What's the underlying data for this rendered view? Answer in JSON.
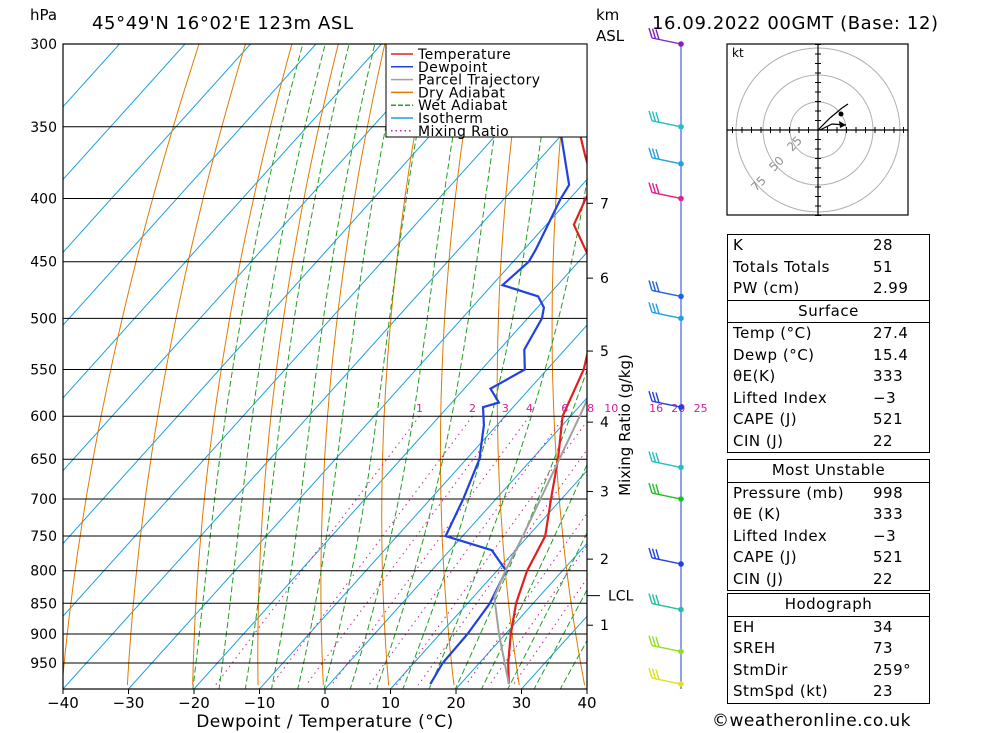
{
  "header": {
    "pressure_unit": "hPa",
    "location": "45°49'N 16°02'E 123m ASL",
    "km_label": "km",
    "asl_label": "ASL",
    "datetime": "16.09.2022 00GMT (Base: 12)"
  },
  "chart_data": {
    "type": "line",
    "chart_kind": "skew-T log-P",
    "xlabel": "Dewpoint / Temperature (°C)",
    "ylabel": "hPa",
    "secondary_axis_label": "Mixing Ratio (g/kg)",
    "x_ticks": [
      -40,
      -30,
      -20,
      -10,
      0,
      10,
      20,
      30,
      40
    ],
    "x_tick_labels": [
      "−40",
      "−30",
      "−20",
      "−10",
      "0",
      "10",
      "20",
      "30",
      "40"
    ],
    "xlim": [
      -40,
      40
    ],
    "pressure_levels": [
      300,
      350,
      400,
      450,
      500,
      550,
      600,
      650,
      700,
      750,
      800,
      850,
      900,
      950
    ],
    "ylim": [
      990,
      300
    ],
    "y_scale": "log",
    "legend": {
      "position": "top-right",
      "entries": [
        {
          "label": "Temperature",
          "color": "#e02020",
          "style": "solid"
        },
        {
          "label": "Dewpoint",
          "color": "#2040e0",
          "style": "solid"
        },
        {
          "label": "Parcel Trajectory",
          "color": "#a0a0a0",
          "style": "solid"
        },
        {
          "label": "Dry Adiabat",
          "color": "#e07a00",
          "style": "solid"
        },
        {
          "label": "Wet Adiabat",
          "color": "#20a020",
          "style": "dashed"
        },
        {
          "label": "Isotherm",
          "color": "#1ea0e0",
          "style": "solid"
        },
        {
          "label": "Mixing Ratio",
          "color": "#d0209a",
          "style": "dotted"
        }
      ]
    },
    "km_ticks": [
      {
        "km": 1,
        "label": "1"
      },
      {
        "km": 2,
        "label": "2"
      },
      {
        "km": 3,
        "label": "3"
      },
      {
        "km": 4,
        "label": "4"
      },
      {
        "km": 5,
        "label": "5"
      },
      {
        "km": 6,
        "label": "6"
      },
      {
        "km": 7,
        "label": "7"
      }
    ],
    "lcl_label": "LCL",
    "mixing_ratio_labels": [
      "1",
      "2",
      "3",
      "4",
      "6",
      "8",
      "10",
      "16",
      "20",
      "25"
    ],
    "series": [
      {
        "name": "Temperature",
        "color": "#e02020",
        "points": [
          [
            988,
            27.4
          ],
          [
            950,
            24.4
          ],
          [
            900,
            20.8
          ],
          [
            850,
            17.4
          ],
          [
            800,
            14.6
          ],
          [
            750,
            12.6
          ],
          [
            700,
            8.4
          ],
          [
            650,
            4.0
          ],
          [
            600,
            -1.2
          ],
          [
            550,
            -4.4
          ],
          [
            500,
            -9.6
          ],
          [
            475,
            -12.2
          ],
          [
            460,
            -15.6
          ],
          [
            440,
            -20.6
          ],
          [
            420,
            -25.8
          ],
          [
            400,
            -27.6
          ],
          [
            390,
            -28.2
          ],
          [
            370,
            -33.4
          ],
          [
            350,
            -38.6
          ],
          [
            300,
            -46.6
          ]
        ]
      },
      {
        "name": "Dewpoint",
        "color": "#2040e0",
        "points": [
          [
            988,
            15.4
          ],
          [
            950,
            14.4
          ],
          [
            900,
            14.2
          ],
          [
            850,
            13.4
          ],
          [
            800,
            11.4
          ],
          [
            770,
            6.4
          ],
          [
            750,
            -2.6
          ],
          [
            700,
            -5.0
          ],
          [
            650,
            -8.0
          ],
          [
            610,
            -12.0
          ],
          [
            590,
            -14.6
          ],
          [
            585,
            -12.8
          ],
          [
            570,
            -16.0
          ],
          [
            550,
            -13.4
          ],
          [
            530,
            -16.2
          ],
          [
            500,
            -17.8
          ],
          [
            490,
            -19.0
          ],
          [
            480,
            -21.4
          ],
          [
            470,
            -28.4
          ],
          [
            450,
            -27.6
          ],
          [
            440,
            -28.2
          ],
          [
            400,
            -31.4
          ],
          [
            390,
            -32.0
          ],
          [
            350,
            -41.4
          ],
          [
            300,
            -50.6
          ]
        ]
      },
      {
        "name": "Parcel Trajectory",
        "color": "#a0a0a0",
        "points": [
          [
            988,
            27.4
          ],
          [
            900,
            19.0
          ],
          [
            840,
            13.2
          ],
          [
            800,
            11.3
          ],
          [
            750,
            9.2
          ],
          [
            700,
            6.8
          ],
          [
            650,
            4.2
          ],
          [
            600,
            1.4
          ],
          [
            550,
            -1.8
          ],
          [
            500,
            -5.6
          ],
          [
            450,
            -10.0
          ],
          [
            400,
            -15.6
          ],
          [
            350,
            -22.4
          ],
          [
            300,
            -30.4
          ]
        ]
      }
    ],
    "winds": [
      {
        "pressure": 300,
        "color": "#8020c0"
      },
      {
        "pressure": 350,
        "color": "#20c0c0"
      },
      {
        "pressure": 375,
        "color": "#20a0e0"
      },
      {
        "pressure": 400,
        "color": "#e0208a"
      },
      {
        "pressure": 480,
        "color": "#2060e0"
      },
      {
        "pressure": 500,
        "color": "#20a0e0"
      },
      {
        "pressure": 590,
        "color": "#2040e0"
      },
      {
        "pressure": 660,
        "color": "#20c0c0"
      },
      {
        "pressure": 700,
        "color": "#20c020"
      },
      {
        "pressure": 790,
        "color": "#2040e0"
      },
      {
        "pressure": 860,
        "color": "#20c0a0"
      },
      {
        "pressure": 930,
        "color": "#90e020"
      },
      {
        "pressure": 988,
        "color": "#e0e020"
      }
    ]
  },
  "hodograph": {
    "unit": "kt",
    "ring_labels": [
      "25",
      "50",
      "75"
    ]
  },
  "indices": [
    {
      "label": "K",
      "value": "28"
    },
    {
      "label": "Totals Totals",
      "value": "51"
    },
    {
      "label": "PW (cm)",
      "value": "2.99"
    }
  ],
  "surface": {
    "title": "Surface",
    "rows": [
      {
        "label": "Temp (°C)",
        "value": "27.4"
      },
      {
        "label": "Dewp (°C)",
        "value": "15.4"
      },
      {
        "label": "θE(K)",
        "value": "333"
      },
      {
        "label": "Lifted Index",
        "value": "−3"
      },
      {
        "label": "CAPE (J)",
        "value": "521"
      },
      {
        "label": "CIN (J)",
        "value": "22"
      }
    ]
  },
  "most_unstable": {
    "title": "Most Unstable",
    "rows": [
      {
        "label": "Pressure (mb)",
        "value": "998"
      },
      {
        "label": "θE (K)",
        "value": "333"
      },
      {
        "label": "Lifted Index",
        "value": "−3"
      },
      {
        "label": "CAPE (J)",
        "value": "521"
      },
      {
        "label": "CIN (J)",
        "value": "22"
      }
    ]
  },
  "hodograph_stats": {
    "title": "Hodograph",
    "rows": [
      {
        "label": "EH",
        "value": "34"
      },
      {
        "label": "SREH",
        "value": "73"
      },
      {
        "label": "StmDir",
        "value": "259°"
      },
      {
        "label": "StmSpd (kt)",
        "value": "23"
      }
    ]
  },
  "credit": "©weatheronline.co.uk"
}
